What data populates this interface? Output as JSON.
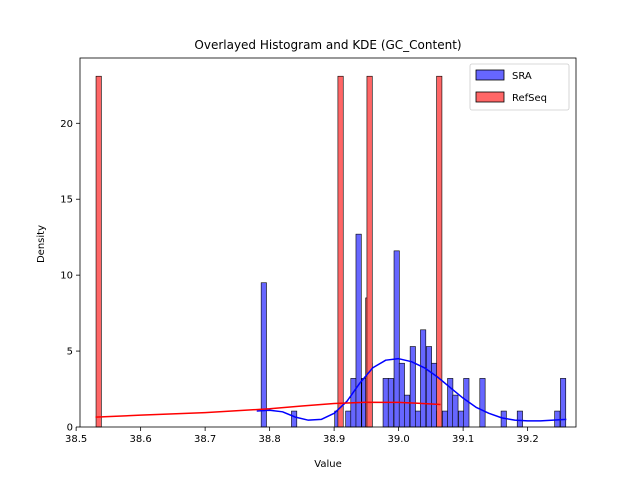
{
  "chart_data": {
    "type": "histogram",
    "title": "Overlayed Histogram and KDE (GC_Content)",
    "xlabel": "Value",
    "ylabel": "Density",
    "xlim": [
      38.506,
      39.275
    ],
    "ylim": [
      0,
      24.3
    ],
    "xticks": [
      38.5,
      38.6,
      38.7,
      38.8,
      38.9,
      39.0,
      39.1,
      39.2
    ],
    "xtick_labels": [
      "38.5",
      "38.6",
      "38.7",
      "38.8",
      "38.9",
      "39.0",
      "39.1",
      "39.2"
    ],
    "yticks": [
      0,
      5,
      10,
      15,
      20
    ],
    "ytick_labels": [
      "0",
      "5",
      "10",
      "15",
      "20"
    ],
    "grid": false,
    "legend": {
      "placement": "top-right"
    },
    "series": [
      {
        "name": "SRA",
        "color": "#0000ff",
        "bar_fill": "#6666ff",
        "bin_width": 0.0083,
        "bins": [
          {
            "x": 38.791,
            "density": 9.5
          },
          {
            "x": 38.838,
            "density": 1.05
          },
          {
            "x": 38.905,
            "density": 1.05
          },
          {
            "x": 38.922,
            "density": 1.05
          },
          {
            "x": 38.93,
            "density": 3.2
          },
          {
            "x": 38.938,
            "density": 12.7
          },
          {
            "x": 38.947,
            "density": 3.2
          },
          {
            "x": 38.955,
            "density": 4.2
          },
          {
            "x": 38.98,
            "density": 3.2
          },
          {
            "x": 38.988,
            "density": 3.2
          },
          {
            "x": 38.997,
            "density": 11.6
          },
          {
            "x": 39.005,
            "density": 4.2
          },
          {
            "x": 39.013,
            "density": 2.1
          },
          {
            "x": 39.022,
            "density": 5.3
          },
          {
            "x": 39.03,
            "density": 1.05
          },
          {
            "x": 39.038,
            "density": 6.4
          },
          {
            "x": 39.047,
            "density": 5.3
          },
          {
            "x": 39.055,
            "density": 4.2
          },
          {
            "x": 39.063,
            "density": 1.05
          },
          {
            "x": 39.072,
            "density": 1.05
          },
          {
            "x": 39.08,
            "density": 3.2
          },
          {
            "x": 39.088,
            "density": 2.1
          },
          {
            "x": 39.097,
            "density": 1.05
          },
          {
            "x": 39.105,
            "density": 3.2
          },
          {
            "x": 39.13,
            "density": 3.2
          },
          {
            "x": 39.163,
            "density": 1.05
          },
          {
            "x": 39.188,
            "density": 1.05
          },
          {
            "x": 39.246,
            "density": 1.05
          },
          {
            "x": 39.255,
            "density": 3.2
          }
        ],
        "kde": {
          "x": [
            38.78,
            38.8,
            38.82,
            38.84,
            38.86,
            38.88,
            38.9,
            38.92,
            38.94,
            38.96,
            38.98,
            39.0,
            39.02,
            39.04,
            39.06,
            39.08,
            39.1,
            39.12,
            39.14,
            39.16,
            39.18,
            39.2,
            39.22,
            39.24,
            39.26
          ],
          "y": [
            1.05,
            1.1,
            1.0,
            0.65,
            0.45,
            0.5,
            0.9,
            1.7,
            2.9,
            3.9,
            4.4,
            4.5,
            4.3,
            3.9,
            3.3,
            2.6,
            1.9,
            1.3,
            0.9,
            0.6,
            0.45,
            0.4,
            0.4,
            0.45,
            0.5
          ]
        }
      },
      {
        "name": "RefSeq",
        "color": "#ff0000",
        "bar_fill": "#ff6666",
        "bin_width": 0.0083,
        "bins": [
          {
            "x": 38.535,
            "density": 23.1
          },
          {
            "x": 38.91,
            "density": 23.1
          },
          {
            "x": 38.953,
            "density": 8.5
          },
          {
            "x": 38.955,
            "density": 23.1
          },
          {
            "x": 39.063,
            "density": 23.1
          }
        ],
        "kde": {
          "x": [
            38.53,
            38.6,
            38.7,
            38.8,
            38.85,
            38.9,
            38.95,
            39.0,
            39.03,
            39.065
          ],
          "y": [
            0.65,
            0.78,
            0.95,
            1.2,
            1.38,
            1.55,
            1.63,
            1.62,
            1.56,
            1.48
          ]
        }
      }
    ]
  }
}
